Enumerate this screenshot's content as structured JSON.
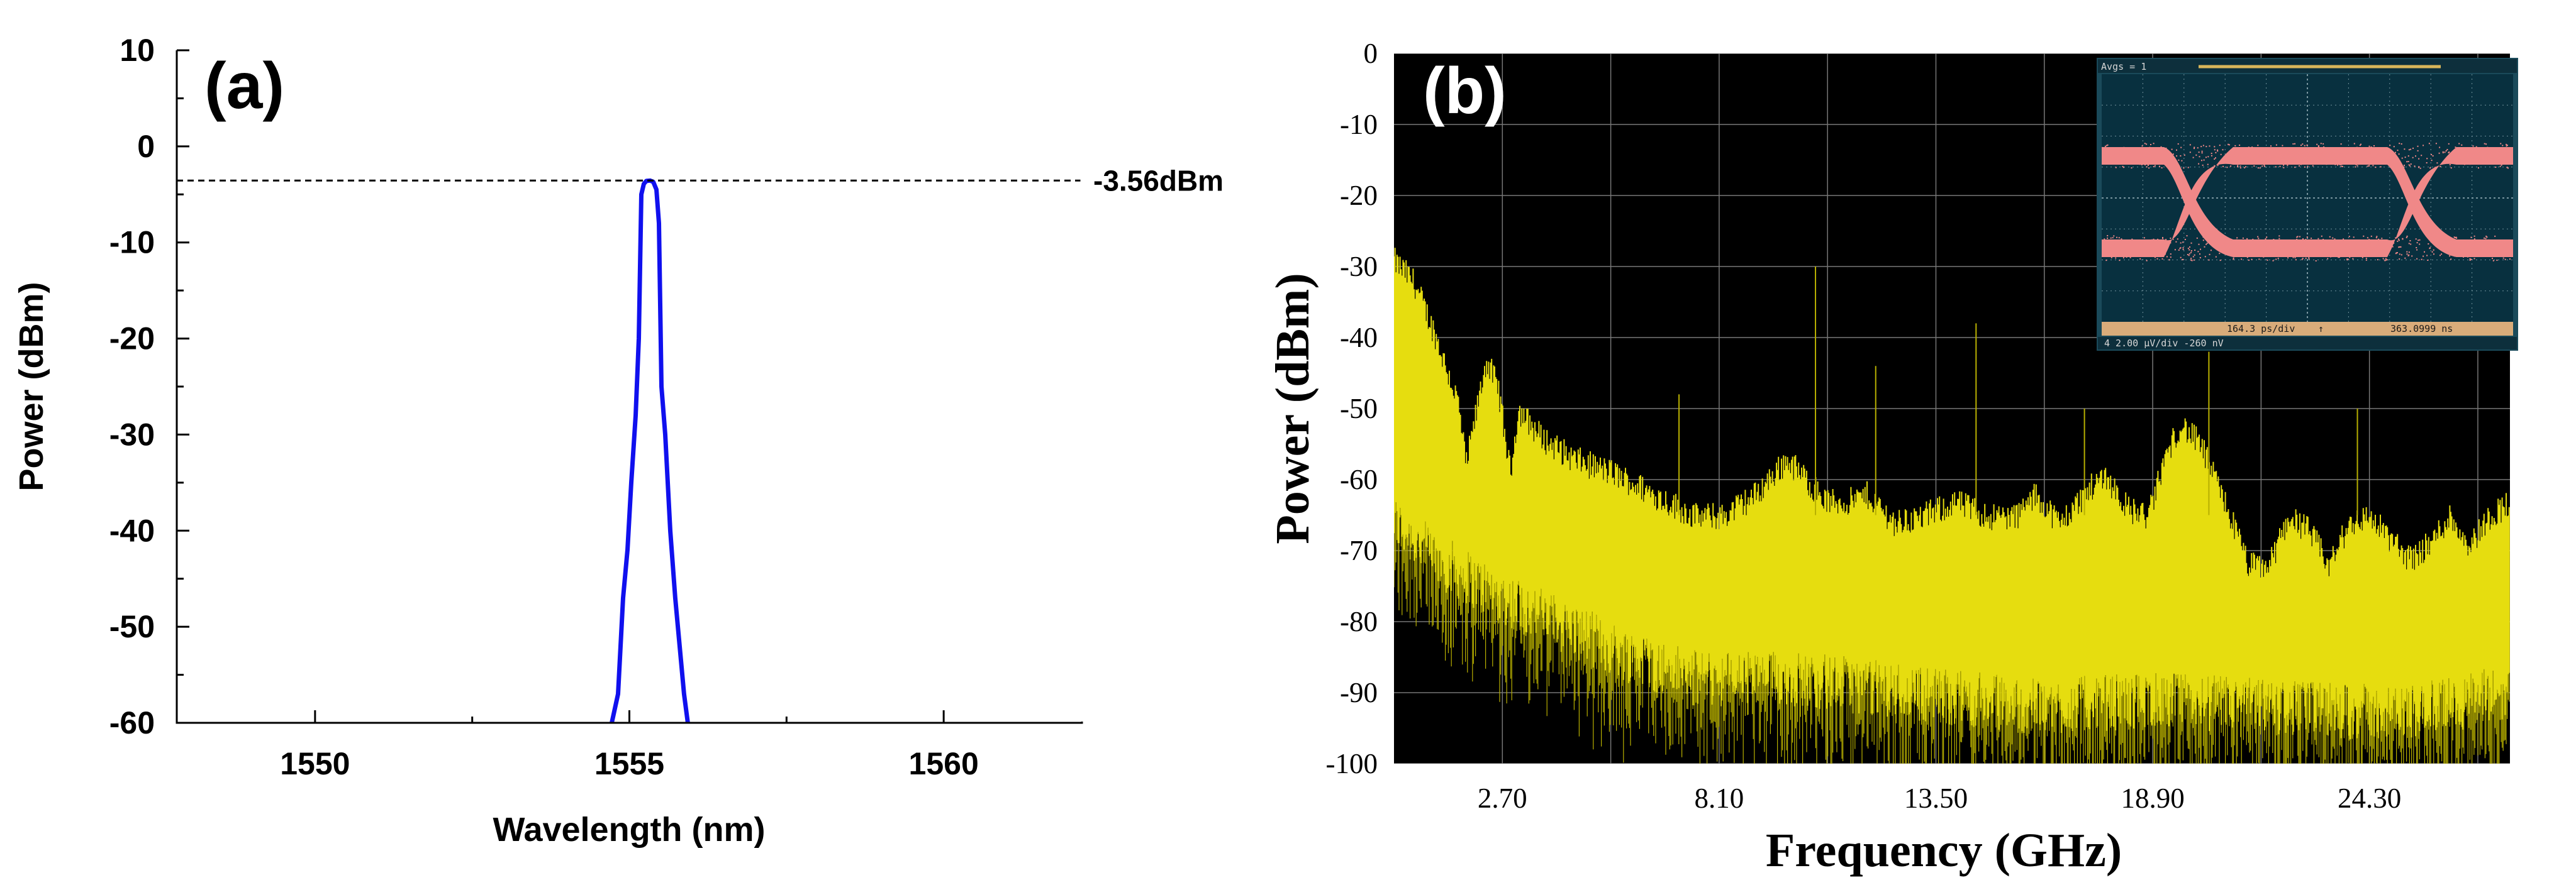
{
  "chart_data": [
    {
      "id": "a",
      "type": "line",
      "panel_label": "(a)",
      "xlabel": "Wavelength (nm)",
      "ylabel": "Power (dBm)",
      "xlim": [
        1547.8,
        1562.2
      ],
      "ylim": [
        -60,
        10
      ],
      "xticks": [
        1550,
        1555,
        1560
      ],
      "yticks": [
        10,
        0,
        -10,
        -20,
        -30,
        -40,
        -50,
        -60
      ],
      "series": [
        {
          "color": "#1010ee",
          "x": [
            1554.72,
            1554.82,
            1554.9,
            1554.97,
            1555.03,
            1555.1,
            1555.15,
            1555.19,
            1555.23,
            1555.27,
            1555.33,
            1555.38,
            1555.43,
            1555.47,
            1555.51,
            1555.57,
            1555.65,
            1555.73,
            1555.8,
            1555.87,
            1555.93
          ],
          "y": [
            -60,
            -57,
            -47,
            -42,
            -35,
            -28,
            -20,
            -5,
            -3.9,
            -3.6,
            -3.56,
            -3.7,
            -4.5,
            -8,
            -25,
            -30,
            -40,
            -47,
            -52,
            -57,
            -60
          ]
        }
      ],
      "reference_line": {
        "y": -3.56,
        "label": "-3.56dBm",
        "style": "dashed"
      },
      "grid": false
    },
    {
      "id": "b",
      "type": "area",
      "panel_label": "(b)",
      "xlabel": "Frequency (GHz)",
      "ylabel": "Power (dBm)",
      "xlim": [
        0,
        27.8
      ],
      "ylim": [
        -100,
        0
      ],
      "xticks": [
        2.7,
        8.1,
        13.5,
        18.9,
        24.3
      ],
      "xtick_labels": [
        "2.70",
        "8.10",
        "13.50",
        "18.90",
        "24.30"
      ],
      "yticks": [
        0,
        -10,
        -20,
        -30,
        -40,
        -50,
        -60,
        -70,
        -80,
        -90,
        -100
      ],
      "background": "#000000",
      "fill_color": "#e6dd0f",
      "grid": true,
      "envelope": {
        "x": [
          0,
          0.5,
          1.0,
          1.3,
          1.6,
          1.8,
          2.0,
          2.3,
          2.6,
          2.9,
          3.1,
          3.4,
          3.7,
          4.5,
          5.5,
          6.5,
          7.5,
          8.2,
          9.0,
          9.8,
          10.3,
          10.8,
          11.3,
          11.8,
          12.5,
          13.2,
          14.0,
          14.8,
          15.5,
          16.0,
          16.6,
          17.2,
          17.7,
          18.3,
          18.8,
          19.2,
          19.6,
          20.1,
          20.7,
          21.3,
          21.8,
          22.3,
          22.8,
          23.3,
          23.8,
          24.3,
          24.8,
          25.3,
          25.8,
          26.3,
          26.8,
          27.3,
          27.8
        ],
        "y": [
          -30,
          -33,
          -40,
          -45,
          -50,
          -59,
          -53,
          -44,
          -48,
          -60,
          -51,
          -53,
          -55,
          -58,
          -60,
          -63,
          -66,
          -66,
          -63,
          -58,
          -61,
          -64,
          -64,
          -63,
          -67,
          -66,
          -64,
          -66,
          -66,
          -63,
          -67,
          -63,
          -60,
          -65,
          -66,
          -58,
          -53,
          -56,
          -64,
          -73,
          -73,
          -66,
          -68,
          -73,
          -67,
          -66,
          -69,
          -72,
          -70,
          -66,
          -70,
          -66,
          -64
        ]
      },
      "floor": {
        "x": [
          0,
          1.0,
          2.5,
          4.0,
          5.5,
          7.5,
          10.0,
          13.0,
          16.0,
          19.0,
          22.0,
          25.0,
          27.8
        ],
        "y": [
          -66,
          -71,
          -76,
          -80,
          -84,
          -88,
          -88,
          -90,
          -92,
          -91,
          -92,
          -93,
          -90
        ]
      },
      "inset": {
        "type": "eye_diagram",
        "header": "Avgs = 1",
        "footer_left": "164.3 ps/div",
        "footer_right": "363.0999 ns",
        "status_text": "4  2.00 µV/div  -260 nV",
        "trace_color": "#f08888"
      }
    }
  ]
}
